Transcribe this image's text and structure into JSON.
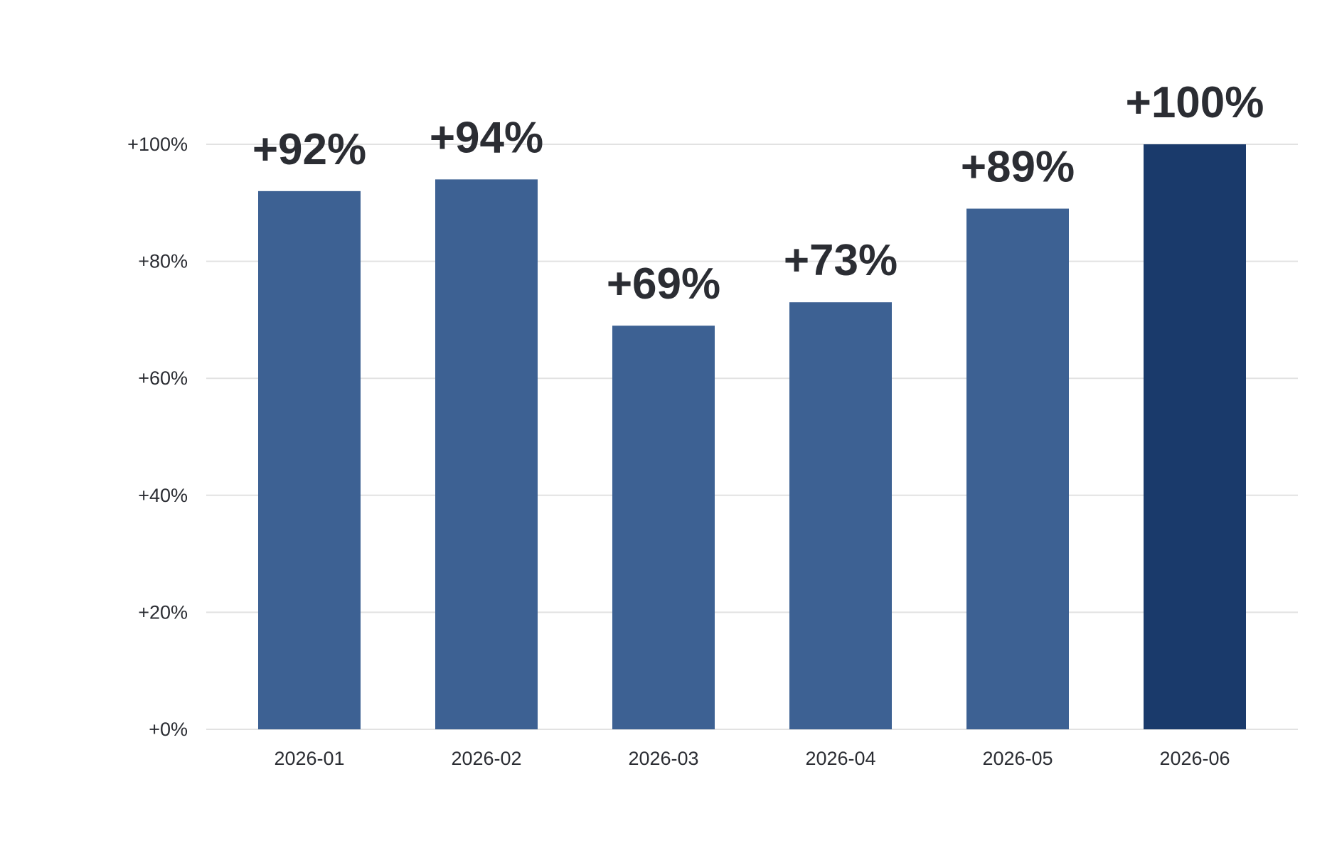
{
  "chart_data": {
    "type": "bar",
    "title": "",
    "xlabel": "",
    "ylabel": "",
    "categories": [
      "2026-01",
      "2026-02",
      "2026-03",
      "2026-04",
      "2026-05",
      "2026-06"
    ],
    "values": [
      92,
      94,
      69,
      73,
      89,
      100
    ],
    "data_labels": [
      "+92%",
      "+94%",
      "+69%",
      "+73%",
      "+89%",
      "+100%"
    ],
    "ylim": [
      0,
      100
    ],
    "yticks": [
      0,
      20,
      40,
      60,
      80,
      100
    ],
    "ytick_labels": [
      "+0%",
      "+20%",
      "+40%",
      "+60%",
      "+80%",
      "+100%"
    ],
    "grid": true,
    "legend": "none",
    "colors": {
      "bar": "#3d6193",
      "highlight_bar": "#1a3a6b",
      "grid": "#e2e2e2",
      "text": "#2b2d33"
    },
    "highlight_index": 5
  }
}
